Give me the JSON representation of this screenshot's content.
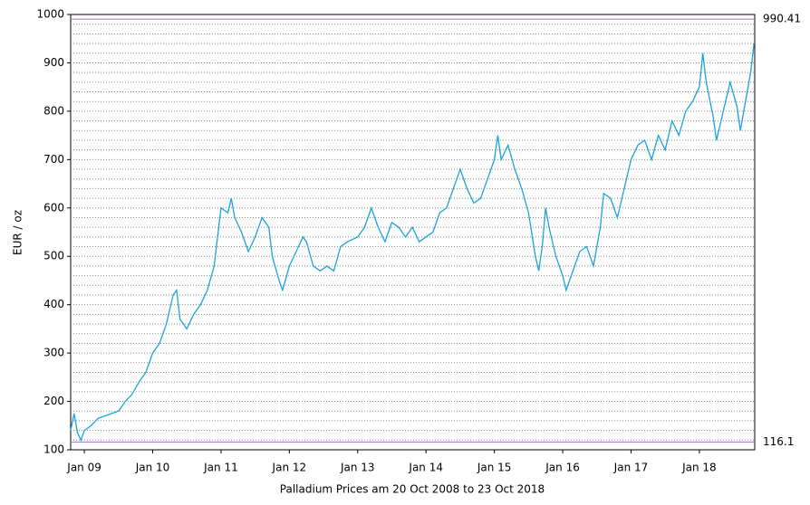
{
  "chart_data": {
    "type": "line",
    "xlabel": "Palladium Prices am 20 Oct 2008 to 23 Oct 2018",
    "ylabel": "EUR / oz",
    "xlim": [
      2008.8,
      2018.81
    ],
    "ylim": [
      100,
      1000
    ],
    "xticks": [
      {
        "value": 2009,
        "label": "Jan 09"
      },
      {
        "value": 2010,
        "label": "Jan 10"
      },
      {
        "value": 2011,
        "label": "Jan 11"
      },
      {
        "value": 2012,
        "label": "Jan 12"
      },
      {
        "value": 2013,
        "label": "Jan 13"
      },
      {
        "value": 2014,
        "label": "Jan 14"
      },
      {
        "value": 2015,
        "label": "Jan 15"
      },
      {
        "value": 2016,
        "label": "Jan 16"
      },
      {
        "value": 2017,
        "label": "Jan 17"
      },
      {
        "value": 2018,
        "label": "Jan 18"
      }
    ],
    "yticks": [
      100,
      200,
      300,
      400,
      500,
      600,
      700,
      800,
      900,
      1000
    ],
    "minor_yticks": [
      120,
      140,
      160,
      180,
      200,
      220,
      240,
      260,
      280,
      300,
      320,
      340,
      360,
      380,
      400,
      420,
      440,
      460,
      480,
      500,
      520,
      540,
      560,
      580,
      600,
      620,
      640,
      660,
      680,
      700,
      720,
      740,
      760,
      780,
      800,
      820,
      840,
      860,
      880,
      900,
      920,
      940,
      960,
      980
    ],
    "grid": true,
    "reference_lines": [
      {
        "value": 990.41,
        "color": "#a070c0"
      },
      {
        "value": 116.1,
        "color": "#a070c0"
      }
    ],
    "series": [
      {
        "name": "Palladium",
        "color": "#1aa3dc",
        "x": [
          2008.8,
          2008.85,
          2008.9,
          2008.95,
          2009.0,
          2009.1,
          2009.2,
          2009.3,
          2009.4,
          2009.5,
          2009.6,
          2009.7,
          2009.8,
          2009.9,
          2010.0,
          2010.1,
          2010.2,
          2010.3,
          2010.35,
          2010.4,
          2010.5,
          2010.6,
          2010.7,
          2010.8,
          2010.9,
          2011.0,
          2011.1,
          2011.15,
          2011.2,
          2011.3,
          2011.4,
          2011.5,
          2011.6,
          2011.7,
          2011.75,
          2011.85,
          2011.9,
          2012.0,
          2012.1,
          2012.2,
          2012.25,
          2012.35,
          2012.45,
          2012.55,
          2012.65,
          2012.75,
          2012.85,
          2013.0,
          2013.1,
          2013.2,
          2013.3,
          2013.4,
          2013.5,
          2013.6,
          2013.7,
          2013.8,
          2013.9,
          2014.0,
          2014.1,
          2014.2,
          2014.3,
          2014.4,
          2014.5,
          2014.6,
          2014.7,
          2014.8,
          2014.9,
          2015.0,
          2015.05,
          2015.1,
          2015.2,
          2015.3,
          2015.4,
          2015.5,
          2015.6,
          2015.65,
          2015.7,
          2015.75,
          2015.8,
          2015.9,
          2016.0,
          2016.05,
          2016.15,
          2016.25,
          2016.35,
          2016.45,
          2016.55,
          2016.6,
          2016.7,
          2016.8,
          2016.9,
          2017.0,
          2017.1,
          2017.2,
          2017.3,
          2017.4,
          2017.5,
          2017.6,
          2017.7,
          2017.8,
          2017.9,
          2018.0,
          2018.05,
          2018.1,
          2018.2,
          2018.25,
          2018.35,
          2018.45,
          2018.55,
          2018.6,
          2018.7,
          2018.75,
          2018.8
        ],
        "values": [
          140,
          175,
          135,
          120,
          140,
          150,
          165,
          170,
          175,
          180,
          200,
          215,
          240,
          260,
          300,
          320,
          360,
          420,
          430,
          370,
          350,
          380,
          400,
          430,
          480,
          600,
          590,
          620,
          580,
          550,
          510,
          540,
          580,
          560,
          500,
          450,
          430,
          480,
          510,
          540,
          530,
          480,
          470,
          480,
          470,
          520,
          530,
          540,
          560,
          600,
          560,
          530,
          570,
          560,
          540,
          560,
          530,
          540,
          550,
          590,
          600,
          640,
          680,
          640,
          610,
          620,
          660,
          700,
          750,
          700,
          730,
          680,
          640,
          590,
          500,
          470,
          520,
          600,
          560,
          500,
          460,
          430,
          470,
          510,
          520,
          480,
          560,
          630,
          620,
          580,
          640,
          700,
          730,
          740,
          700,
          750,
          720,
          780,
          750,
          800,
          820,
          850,
          920,
          860,
          790,
          740,
          800,
          860,
          810,
          760,
          840,
          880,
          940
        ]
      }
    ]
  }
}
